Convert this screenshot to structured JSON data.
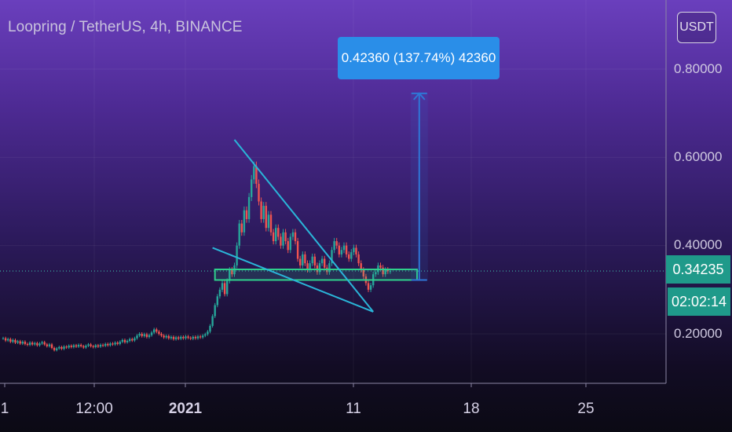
{
  "header": {
    "title": "Loopring / TetherUS, 4h, BINANCE",
    "currency_button": "USDT"
  },
  "price_scale": {
    "last_price": "0.34235",
    "countdown": "02:02:14"
  },
  "measure_label": "0.42360 (137.74%) 42360",
  "colors": {
    "up": "#26a69a",
    "down": "#ef5350",
    "trendline": "#2ab5d8",
    "zone": "#2fd08c",
    "measure_arrow": "#2f76d6",
    "price_line": "#3fb8a8"
  },
  "chart_data": {
    "type": "candlestick",
    "symbol": "Loopring / TetherUS",
    "interval": "4h",
    "exchange": "BINANCE",
    "ylim": [
      0.07,
      0.87
    ],
    "y_ticks": [
      0.2,
      0.4,
      0.6,
      0.8
    ],
    "y_tick_labels": [
      "0.20000",
      "0.40000",
      "0.60000",
      "0.80000"
    ],
    "x_tick_labels": [
      "1",
      "12:00",
      "2021",
      "11",
      "18",
      "25"
    ],
    "last_price": 0.34235,
    "close": [
      0.19,
      0.185,
      0.188,
      0.182,
      0.186,
      0.18,
      0.183,
      0.178,
      0.182,
      0.177,
      0.175,
      0.18,
      0.176,
      0.179,
      0.174,
      0.178,
      0.181,
      0.176,
      0.172,
      0.176,
      0.168,
      0.163,
      0.167,
      0.17,
      0.166,
      0.171,
      0.169,
      0.173,
      0.17,
      0.174,
      0.171,
      0.175,
      0.172,
      0.169,
      0.173,
      0.176,
      0.172,
      0.17,
      0.174,
      0.171,
      0.175,
      0.173,
      0.177,
      0.174,
      0.178,
      0.176,
      0.18,
      0.177,
      0.182,
      0.186,
      0.181,
      0.184,
      0.188,
      0.185,
      0.19,
      0.196,
      0.2,
      0.195,
      0.199,
      0.193,
      0.197,
      0.203,
      0.21,
      0.205,
      0.2,
      0.196,
      0.192,
      0.195,
      0.19,
      0.193,
      0.188,
      0.192,
      0.189,
      0.193,
      0.19,
      0.194,
      0.191,
      0.189,
      0.193,
      0.19,
      0.194,
      0.192,
      0.196,
      0.199,
      0.205,
      0.218,
      0.24,
      0.265,
      0.285,
      0.3,
      0.315,
      0.29,
      0.32,
      0.345,
      0.335,
      0.355,
      0.4,
      0.45,
      0.43,
      0.48,
      0.46,
      0.51,
      0.55,
      0.58,
      0.54,
      0.5,
      0.46,
      0.49,
      0.44,
      0.47,
      0.43,
      0.41,
      0.44,
      0.42,
      0.4,
      0.43,
      0.41,
      0.39,
      0.42,
      0.43,
      0.41,
      0.37,
      0.355,
      0.38,
      0.36,
      0.345,
      0.36,
      0.375,
      0.355,
      0.34,
      0.36,
      0.37,
      0.35,
      0.34,
      0.36,
      0.39,
      0.41,
      0.4,
      0.38,
      0.39,
      0.4,
      0.38,
      0.37,
      0.385,
      0.395,
      0.38,
      0.36,
      0.345,
      0.33,
      0.315,
      0.3,
      0.31,
      0.335,
      0.34,
      0.355,
      0.35,
      0.335,
      0.345,
      0.342,
      0.342
    ],
    "annotations": {
      "descending_trendline": {
        "from": {
          "candle": 95,
          "price": 0.64
        },
        "to": {
          "candle": 152,
          "price": 0.25
        }
      },
      "lower_trendline": {
        "from": {
          "candle": 86,
          "price": 0.395
        },
        "to": {
          "candle": 152,
          "price": 0.25
        }
      },
      "support_zone": {
        "start_candle": 87,
        "end_candle": 170,
        "low": 0.322,
        "high": 0.346
      },
      "measure_arrow": {
        "candle": 158,
        "from": 0.322,
        "to": 0.745
      },
      "last_price_line": 0.34235
    }
  }
}
